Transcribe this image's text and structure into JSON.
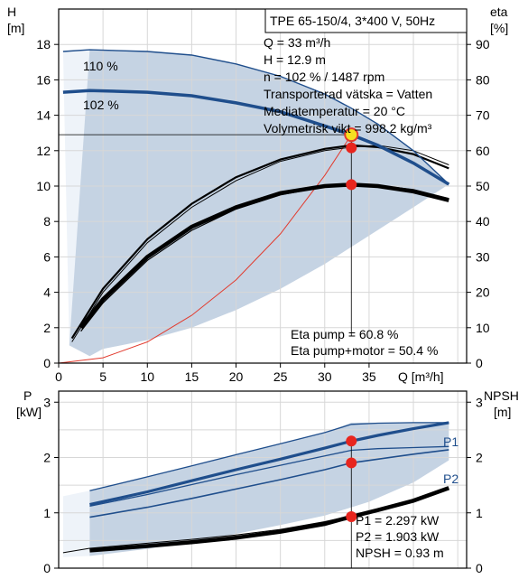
{
  "chart_data": [
    {
      "type": "line",
      "title": "TPE 65-150/4, 3*400 V, 50Hz",
      "xlabel": "Q [m³/h]",
      "ylabel_left": "H",
      "ylabel_left_unit": "[m]",
      "ylabel_right": "eta",
      "ylabel_right_unit": "[%]",
      "xlim": [
        0,
        46
      ],
      "ylim": [
        0,
        20
      ],
      "ylim_right": [
        0,
        100
      ],
      "xticks": [
        0,
        5,
        10,
        15,
        20,
        25,
        30,
        35
      ],
      "yticks": [
        0,
        2,
        4,
        6,
        8,
        10,
        12,
        14,
        16,
        18
      ],
      "yticks_right": [
        0,
        10,
        20,
        30,
        40,
        50,
        60,
        70,
        80,
        90
      ],
      "grid": true,
      "colors": {
        "head": "#1f4e8c",
        "eta": "#000000",
        "system": "#e23b2e",
        "envelope": "#c5d3e3",
        "envelope_light": "#eef3f9"
      },
      "speed_labels": [
        "110 %",
        "102 %"
      ],
      "series": [
        {
          "name": "110 %",
          "x": [
            0.5,
            3.5,
            10,
            15,
            20,
            25,
            30,
            33,
            36,
            40,
            44
          ],
          "y": [
            17.6,
            17.7,
            17.6,
            17.4,
            16.9,
            16.2,
            15.2,
            14.4,
            13.5,
            12.0,
            10.1
          ]
        },
        {
          "name": "102 %",
          "x": [
            0.5,
            3.5,
            10,
            15,
            20,
            25,
            30,
            33,
            36,
            40,
            44
          ],
          "y": [
            15.3,
            15.4,
            15.3,
            15.1,
            14.7,
            14.2,
            13.4,
            12.9,
            12.3,
            11.3,
            10.1
          ]
        }
      ],
      "eta_curves": [
        {
          "x": [
            1.5,
            5,
            10,
            15,
            20,
            25,
            30,
            33,
            36,
            40,
            44
          ],
          "y": [
            7.0,
            21.0,
            35.0,
            45.0,
            52.5,
            57.5,
            60.5,
            61.5,
            61.0,
            59.0,
            55.0
          ]
        },
        {
          "x": [
            1.5,
            5,
            10,
            15,
            20,
            25,
            30,
            33,
            36,
            40,
            44
          ],
          "y": [
            6.0,
            20.0,
            34.0,
            44.0,
            51.5,
            57.0,
            60.0,
            61.0,
            61.5,
            60.0,
            56.0
          ]
        },
        {
          "x": [
            2.5,
            5,
            10,
            15,
            20,
            25,
            30,
            33,
            36,
            40,
            44
          ],
          "y": [
            10.0,
            18.0,
            30.0,
            38.5,
            44.0,
            48.0,
            50.0,
            50.4,
            50.0,
            48.5,
            46.0
          ]
        },
        {
          "x": [
            2.5,
            5,
            10,
            15,
            20,
            25,
            30,
            33,
            36,
            40,
            44
          ],
          "y": [
            9.0,
            17.0,
            29.0,
            37.5,
            43.5,
            47.5,
            49.8,
            50.4,
            50.2,
            49.0,
            46.5
          ]
        }
      ],
      "system_curve": {
        "x": [
          0,
          5,
          10,
          15,
          20,
          25,
          30,
          33
        ],
        "y": [
          0,
          0.3,
          1.2,
          2.7,
          4.7,
          7.3,
          10.6,
          12.9
        ]
      },
      "envelope_upper": {
        "x": [
          3.5,
          10,
          15,
          20,
          25,
          30,
          33,
          36,
          40,
          44
        ],
        "y": [
          17.7,
          17.6,
          17.4,
          16.9,
          16.2,
          15.2,
          14.4,
          13.5,
          12.0,
          10.1
        ]
      },
      "envelope_lower": {
        "x": [
          44,
          40,
          35,
          30,
          25,
          20,
          15,
          10,
          5,
          3.5,
          1.2
        ],
        "y": [
          10.1,
          8.8,
          7.2,
          5.6,
          4.2,
          3.0,
          2.0,
          1.3,
          0.8,
          0.4,
          1.0
        ]
      },
      "envelope_light_edge": {
        "x": [
          0.5,
          3.5,
          3.5,
          1.2
        ],
        "y": [
          17.6,
          17.7,
          0.4,
          1.0
        ]
      },
      "operating_points": [
        {
          "x": 33,
          "y": 12.9,
          "kind": "duty"
        },
        {
          "x": 33,
          "y": 12.16,
          "kind": "eta"
        },
        {
          "x": 33,
          "y": 10.08,
          "kind": "eta"
        }
      ],
      "annotations": [
        "Q = 33 m³/h",
        "H = 12.9 m",
        "n = 102 % / 1487 rpm",
        "Transporterad vätska = Vatten",
        "Mediatemperatur = 20 °C",
        "Volymetrisk vikt = 998.2 kg/m³"
      ],
      "eta_annotations": [
        "Eta pump = 60.8 %",
        "Eta pump+motor = 50.4 %"
      ]
    },
    {
      "type": "line",
      "ylabel_left": "P",
      "ylabel_left_unit": "[kW]",
      "ylabel_right": "NPSH",
      "ylabel_right_unit": "[m]",
      "xlim": [
        0,
        46
      ],
      "ylim": [
        0,
        3.2
      ],
      "yticks": [
        0,
        1,
        2,
        3
      ],
      "yticks_right": [
        0,
        1,
        2,
        3
      ],
      "grid": true,
      "series": [
        {
          "name": "P1",
          "x": [
            3.5,
            10,
            15,
            20,
            25,
            30,
            33,
            36,
            40,
            44
          ],
          "y": [
            1.15,
            1.38,
            1.58,
            1.78,
            1.97,
            2.17,
            2.297,
            2.4,
            2.52,
            2.63
          ]
        },
        {
          "name": "P2",
          "x": [
            3.5,
            10,
            15,
            20,
            25,
            30,
            33,
            36,
            40,
            44
          ],
          "y": [
            0.92,
            1.1,
            1.26,
            1.43,
            1.6,
            1.78,
            1.903,
            1.97,
            2.06,
            2.14
          ]
        }
      ],
      "upper_curves": [
        {
          "x": [
            3.5,
            10,
            15,
            20,
            25,
            30,
            33,
            36,
            40,
            44
          ],
          "y": [
            1.4,
            1.65,
            1.85,
            2.05,
            2.25,
            2.45,
            2.6,
            2.62,
            2.63,
            2.63
          ]
        },
        {
          "x": [
            3.5,
            10,
            15,
            20,
            25,
            30,
            33,
            36,
            40,
            44
          ],
          "y": [
            1.12,
            1.33,
            1.51,
            1.69,
            1.86,
            2.03,
            2.13,
            2.16,
            2.18,
            2.2
          ]
        }
      ],
      "npsh_curve": {
        "x": [
          3.5,
          10,
          15,
          20,
          25,
          30,
          33,
          36,
          40,
          44
        ],
        "y": [
          0.32,
          0.4,
          0.47,
          0.55,
          0.66,
          0.8,
          0.93,
          1.05,
          1.22,
          1.45
        ]
      },
      "npsh_thin": {
        "x": [
          0.5,
          3.5,
          10,
          15,
          20,
          25,
          30,
          33
        ],
        "y": [
          0.28,
          0.36,
          0.45,
          0.52,
          0.6,
          0.7,
          0.84,
          0.95
        ]
      },
      "envelope_upper": {
        "x": [
          3.5,
          10,
          15,
          20,
          25,
          30,
          33,
          36,
          40,
          44
        ],
        "y": [
          1.4,
          1.65,
          1.85,
          2.05,
          2.25,
          2.45,
          2.63,
          2.63,
          2.63,
          2.63
        ]
      },
      "envelope_lower": {
        "x": [
          44,
          40,
          35,
          30,
          25,
          20,
          15,
          10,
          5,
          3.5
        ],
        "y": [
          1.95,
          1.55,
          1.2,
          0.95,
          0.78,
          0.62,
          0.48,
          0.35,
          0.25,
          0.22
        ]
      },
      "envelope_light_edge": {
        "x": [
          0.5,
          3.5,
          3.5,
          0.5
        ],
        "y": [
          1.3,
          1.4,
          0.22,
          0.2
        ]
      },
      "operating_points": [
        {
          "x": 33,
          "y": 2.297
        },
        {
          "x": 33,
          "y": 1.903
        },
        {
          "x": 33,
          "y": 0.93
        }
      ],
      "annotations": [
        "P1 = 2.297 kW",
        "P2 = 1.903 kW",
        "NPSH = 0.93 m"
      ]
    }
  ]
}
